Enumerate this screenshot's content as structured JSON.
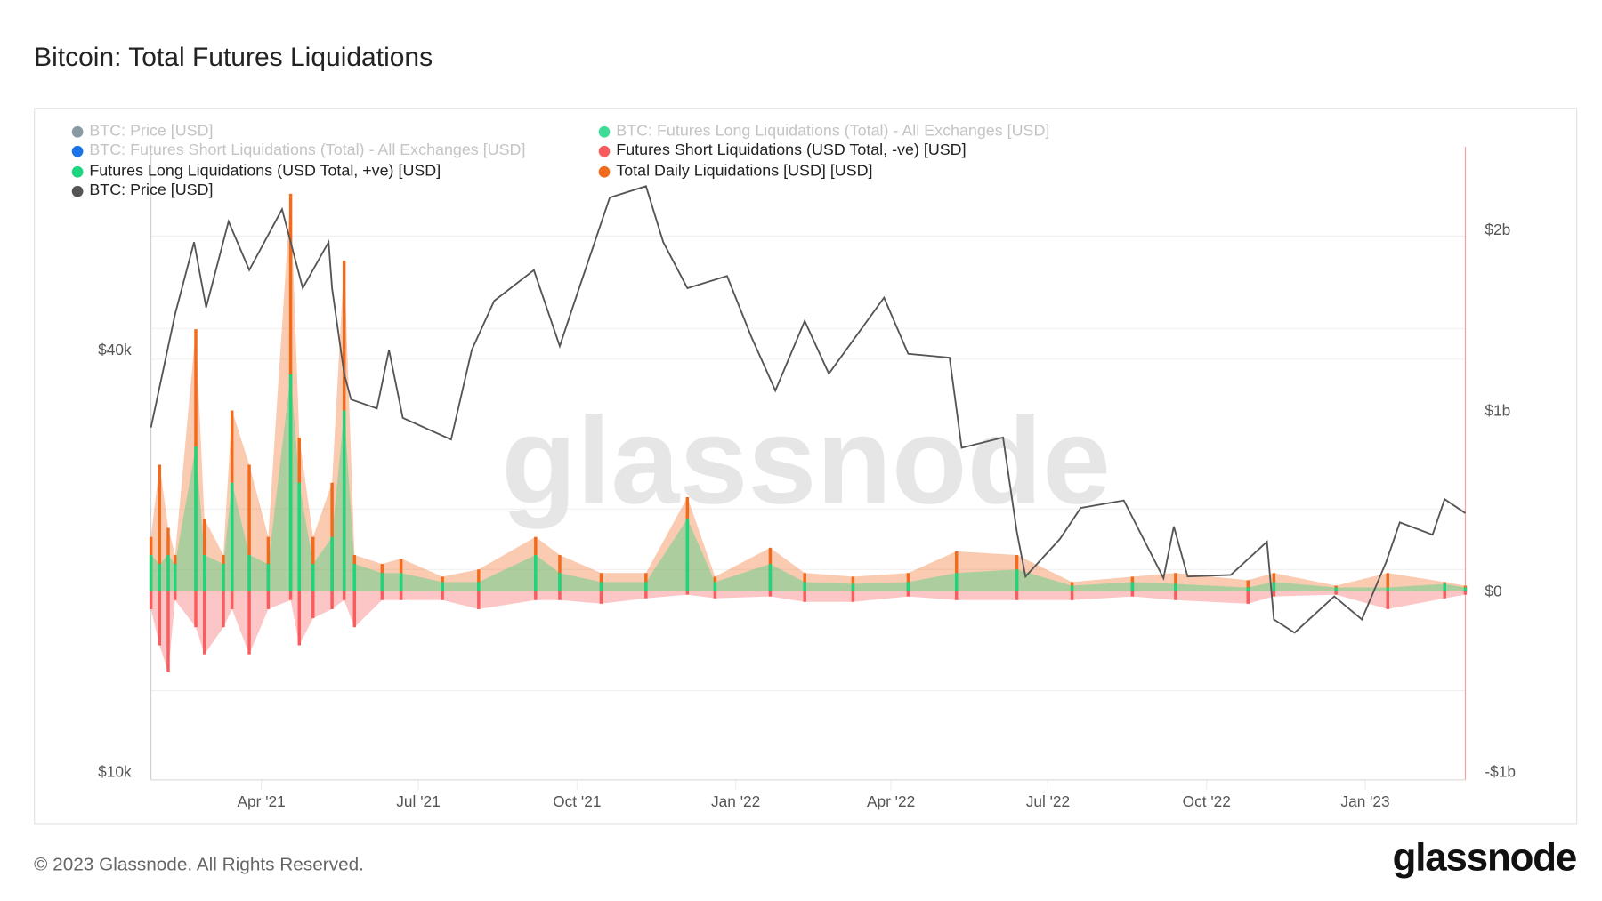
{
  "title": "Bitcoin: Total Futures Liquidations",
  "footer": {
    "copyright": "© 2023 Glassnode. All Rights Reserved.",
    "logo": "glassnode"
  },
  "watermark": "glassnode",
  "legend": [
    {
      "label": "BTC: Price [USD]",
      "color": "#8a9aa3",
      "active": false
    },
    {
      "label": "BTC: Futures Long Liquidations (Total) - All Exchanges [USD]",
      "color": "#3ddc97",
      "active": false
    },
    {
      "label": "BTC: Futures Short Liquidations (Total) - All Exchanges [USD]",
      "color": "#1a73e8",
      "active": false
    },
    {
      "label": "Futures Short Liquidations (USD Total, -ve) [USD]",
      "color": "#f85c5c",
      "active": true
    },
    {
      "label": "Futures Long Liquidations (USD Total, +ve) [USD]",
      "color": "#1dd47f",
      "active": true
    },
    {
      "label": "Total Daily Liquidations [USD] [USD]",
      "color": "#f26b1d",
      "active": true
    },
    {
      "label": "BTC: Price [USD]",
      "color": "#555555",
      "active": true
    }
  ],
  "chart_data": {
    "type": "line",
    "title": "Bitcoin: Total Futures Liquidations",
    "x_ticks": [
      "Apr '21",
      "Jul '21",
      "Oct '21",
      "Jan '22",
      "Apr '22",
      "Jul '22",
      "Oct '22",
      "Jan '23"
    ],
    "x_tick_dates": [
      "2021-04-01",
      "2021-07-01",
      "2021-10-01",
      "2022-01-01",
      "2022-04-01",
      "2022-07-01",
      "2022-10-01",
      "2023-01-01"
    ],
    "xlim": [
      "2021-01-27",
      "2023-02-28"
    ],
    "y_left": {
      "scale": "log",
      "ticks": [
        "$10k",
        "$40k"
      ],
      "tick_values": [
        10000,
        40000
      ]
    },
    "y_right": {
      "scale": "linear",
      "ticks": [
        "-$1b",
        "$0",
        "$1b",
        "$2b"
      ],
      "tick_values": [
        -1,
        0,
        1,
        2
      ],
      "unit": "USD billions"
    },
    "grid": true,
    "legend_placement": "top-left",
    "price_series": {
      "name": "BTC: Price [USD]",
      "color": "#555555",
      "points": [
        [
          "2021-01-27",
          31000
        ],
        [
          "2021-02-10",
          45000
        ],
        [
          "2021-02-21",
          57000
        ],
        [
          "2021-02-28",
          46000
        ],
        [
          "2021-03-13",
          61000
        ],
        [
          "2021-03-25",
          52000
        ],
        [
          "2021-04-13",
          63500
        ],
        [
          "2021-04-25",
          49000
        ],
        [
          "2021-05-10",
          57000
        ],
        [
          "2021-05-12",
          49000
        ],
        [
          "2021-05-19",
          37000
        ],
        [
          "2021-05-23",
          34000
        ],
        [
          "2021-06-07",
          33000
        ],
        [
          "2021-06-14",
          40000
        ],
        [
          "2021-06-22",
          32000
        ],
        [
          "2021-07-20",
          29800
        ],
        [
          "2021-08-01",
          40000
        ],
        [
          "2021-08-14",
          47000
        ],
        [
          "2021-09-06",
          52000
        ],
        [
          "2021-09-21",
          40500
        ],
        [
          "2021-10-01",
          48000
        ],
        [
          "2021-10-20",
          66000
        ],
        [
          "2021-11-10",
          68500
        ],
        [
          "2021-11-20",
          57000
        ],
        [
          "2021-12-04",
          49000
        ],
        [
          "2021-12-27",
          51000
        ],
        [
          "2022-01-10",
          41800
        ],
        [
          "2022-01-24",
          35000
        ],
        [
          "2022-02-10",
          44000
        ],
        [
          "2022-02-24",
          37000
        ],
        [
          "2022-03-28",
          47500
        ],
        [
          "2022-04-11",
          39500
        ],
        [
          "2022-05-05",
          39000
        ],
        [
          "2022-05-12",
          29000
        ],
        [
          "2022-06-05",
          30000
        ],
        [
          "2022-06-13",
          22000
        ],
        [
          "2022-06-18",
          19000
        ],
        [
          "2022-07-08",
          21500
        ],
        [
          "2022-07-20",
          23800
        ],
        [
          "2022-08-14",
          24400
        ],
        [
          "2022-09-06",
          18900
        ],
        [
          "2022-09-12",
          22400
        ],
        [
          "2022-09-20",
          19000
        ],
        [
          "2022-10-15",
          19100
        ],
        [
          "2022-11-05",
          21300
        ],
        [
          "2022-11-09",
          16500
        ],
        [
          "2022-11-21",
          15800
        ],
        [
          "2022-12-14",
          17800
        ],
        [
          "2022-12-30",
          16500
        ],
        [
          "2023-01-13",
          19900
        ],
        [
          "2023-01-21",
          22700
        ],
        [
          "2023-02-09",
          21800
        ],
        [
          "2023-02-16",
          24500
        ],
        [
          "2023-02-28",
          23400
        ]
      ]
    },
    "liquidation_series_columns": [
      "date",
      "long_usd_b",
      "short_usd_b",
      "total_usd_b"
    ],
    "liquidations": [
      [
        "2021-01-27",
        0.2,
        -0.1,
        0.3
      ],
      [
        "2021-02-01",
        0.15,
        -0.3,
        0.7
      ],
      [
        "2021-02-06",
        0.2,
        -0.45,
        0.35
      ],
      [
        "2021-02-10",
        0.15,
        -0.05,
        0.2
      ],
      [
        "2021-02-22",
        0.8,
        -0.2,
        1.45
      ],
      [
        "2021-02-27",
        0.2,
        -0.35,
        0.4
      ],
      [
        "2021-03-10",
        0.15,
        -0.2,
        0.2
      ],
      [
        "2021-03-15",
        0.6,
        -0.1,
        1.0
      ],
      [
        "2021-03-25",
        0.2,
        -0.35,
        0.7
      ],
      [
        "2021-04-05",
        0.15,
        -0.1,
        0.3
      ],
      [
        "2021-04-18",
        1.2,
        -0.05,
        2.2
      ],
      [
        "2021-04-23",
        0.6,
        -0.3,
        0.85
      ],
      [
        "2021-05-01",
        0.15,
        -0.15,
        0.3
      ],
      [
        "2021-05-12",
        0.3,
        -0.1,
        0.6
      ],
      [
        "2021-05-19",
        1.0,
        -0.05,
        1.83
      ],
      [
        "2021-05-25",
        0.15,
        -0.2,
        0.2
      ],
      [
        "2021-06-10",
        0.1,
        -0.05,
        0.15
      ],
      [
        "2021-06-21",
        0.1,
        -0.05,
        0.18
      ],
      [
        "2021-07-15",
        0.05,
        -0.05,
        0.08
      ],
      [
        "2021-08-05",
        0.05,
        -0.1,
        0.12
      ],
      [
        "2021-09-07",
        0.2,
        -0.05,
        0.3
      ],
      [
        "2021-09-21",
        0.1,
        -0.05,
        0.2
      ],
      [
        "2021-10-15",
        0.05,
        -0.07,
        0.1
      ],
      [
        "2021-11-10",
        0.05,
        -0.04,
        0.1
      ],
      [
        "2021-12-04",
        0.4,
        -0.02,
        0.52
      ],
      [
        "2021-12-20",
        0.05,
        -0.04,
        0.08
      ],
      [
        "2022-01-21",
        0.15,
        -0.03,
        0.24
      ],
      [
        "2022-02-10",
        0.05,
        -0.06,
        0.1
      ],
      [
        "2022-03-10",
        0.04,
        -0.06,
        0.08
      ],
      [
        "2022-04-11",
        0.05,
        -0.03,
        0.1
      ],
      [
        "2022-05-09",
        0.1,
        -0.05,
        0.22
      ],
      [
        "2022-06-13",
        0.12,
        -0.05,
        0.2
      ],
      [
        "2022-07-15",
        0.03,
        -0.05,
        0.05
      ],
      [
        "2022-08-19",
        0.05,
        -0.03,
        0.08
      ],
      [
        "2022-09-13",
        0.04,
        -0.05,
        0.1
      ],
      [
        "2022-10-25",
        0.02,
        -0.07,
        0.06
      ],
      [
        "2022-11-09",
        0.05,
        -0.03,
        0.1
      ],
      [
        "2022-12-15",
        0.02,
        -0.02,
        0.03
      ],
      [
        "2023-01-14",
        0.02,
        -0.1,
        0.1
      ],
      [
        "2023-02-16",
        0.04,
        -0.04,
        0.05
      ],
      [
        "2023-02-28",
        0.02,
        -0.02,
        0.03
      ]
    ],
    "colors": {
      "price": "#555555",
      "long": "#1dd47f",
      "short": "#f85c5c",
      "total": "#f26b1d"
    }
  }
}
